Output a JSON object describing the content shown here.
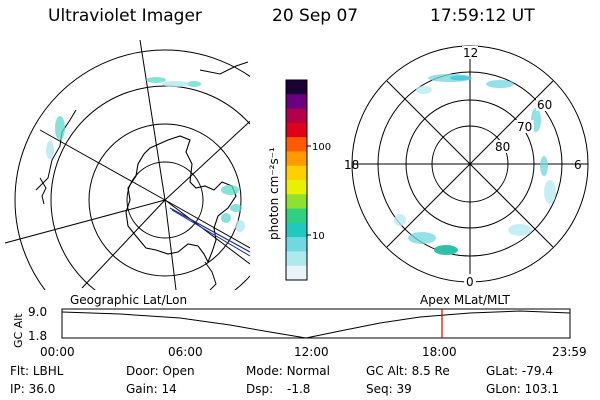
{
  "header": {
    "title": "Ultraviolet Imager",
    "date": "20 Sep 07",
    "time": "17:59:12 UT"
  },
  "left_panel": {
    "projection_label": "Geographic Lat/Lon"
  },
  "colorbar": {
    "unit_label": "photon cm⁻²s⁻¹",
    "ticks": [
      "100",
      "10"
    ],
    "scale": "log",
    "colors": [
      "#1a0033",
      "#6a0080",
      "#b0004a",
      "#e0001a",
      "#ff5a00",
      "#ff9a00",
      "#ffd000",
      "#e8f200",
      "#90e030",
      "#30d080",
      "#20c8c0",
      "#70d8e0",
      "#b0e8f0",
      "#e8f4f8"
    ]
  },
  "right_panel": {
    "projection_label": "Apex MLat/MLT",
    "mlt_labels": {
      "top": "12",
      "bottom": "0",
      "left": "18",
      "right": "6"
    },
    "lat_labels": [
      "60",
      "70",
      "80"
    ]
  },
  "altitude_plot": {
    "ylabel": "GC Alt",
    "y_ticks": [
      "9.0",
      "1.8"
    ],
    "x_ticks": [
      "00:00",
      "06:00",
      "12:00",
      "18:00",
      "23:59"
    ],
    "marker_color": "#e00000"
  },
  "info": {
    "filter_label": "Flt:",
    "filter_value": "LBHL",
    "door_label": "Door:",
    "door_value": "Open",
    "mode_label": "Mode:",
    "mode_value": "Normal",
    "gcalt_label": "GC Alt:",
    "gcalt_value": "8.5 Re",
    "glat_label": "GLat:",
    "glat_value": "-79.4",
    "ip_label": "IP:",
    "ip_value": "36.0",
    "gain_label": "Gain:",
    "gain_value": "14",
    "dsp_label": "Dsp:",
    "dsp_value": "-1.8",
    "seq_label": "Seq:",
    "seq_value": "39",
    "glon_label": "GLon:",
    "glon_value": "103.1"
  }
}
